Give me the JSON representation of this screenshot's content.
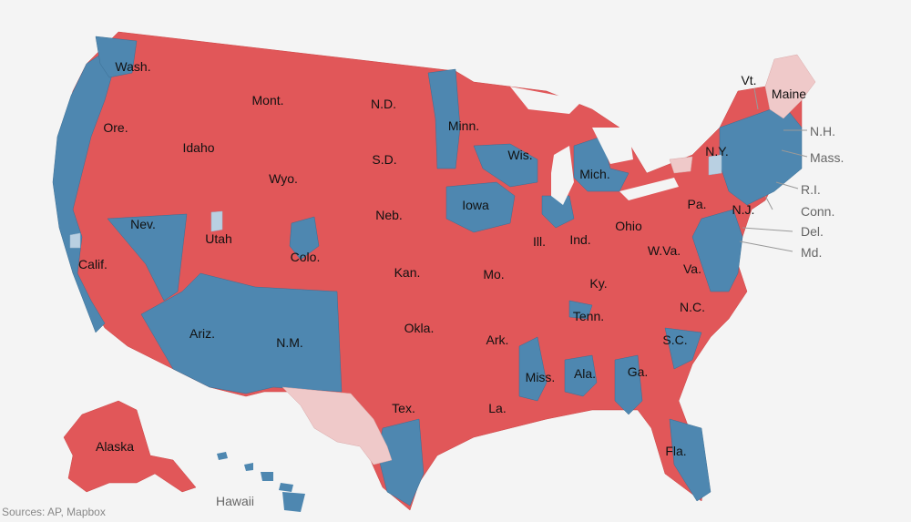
{
  "colors": {
    "republican": "#e15759",
    "democrat": "#4e87b0",
    "undecided_rep": "#efc9c9",
    "undecided_dem": "#b9d0e2",
    "background": "#f4f4f4",
    "border": "#b04848"
  },
  "states": {
    "wash": "Wash.",
    "ore": "Ore.",
    "calif": "Calif.",
    "nev": "Nev.",
    "idaho": "Idaho",
    "mont": "Mont.",
    "wyo": "Wyo.",
    "utah": "Utah",
    "colo": "Colo.",
    "ariz": "Ariz.",
    "nm": "N.M.",
    "nd": "N.D.",
    "sd": "S.D.",
    "neb": "Neb.",
    "kan": "Kan.",
    "okla": "Okla.",
    "tex": "Tex.",
    "minn": "Minn.",
    "iowa": "Iowa",
    "mo": "Mo.",
    "ark": "Ark.",
    "la": "La.",
    "wis": "Wis.",
    "ill": "Ill.",
    "mich": "Mich.",
    "ind": "Ind.",
    "ohio": "Ohio",
    "ky": "Ky.",
    "tenn": "Tenn.",
    "miss": "Miss.",
    "ala": "Ala.",
    "ga": "Ga.",
    "fla": "Fla.",
    "sc": "S.C.",
    "nc": "N.C.",
    "va": "Va.",
    "wva": "W.Va.",
    "pa": "Pa.",
    "ny": "N.Y.",
    "nj": "N.J.",
    "maine": "Maine",
    "alaska": "Alaska",
    "vt": "Vt.",
    "nh": "N.H.",
    "mass": "Mass.",
    "ri": "R.I.",
    "conn": "Conn.",
    "del": "Del.",
    "md": "Md.",
    "hawaii": "Hawaii"
  },
  "source": "Sources: AP, Mapbox"
}
